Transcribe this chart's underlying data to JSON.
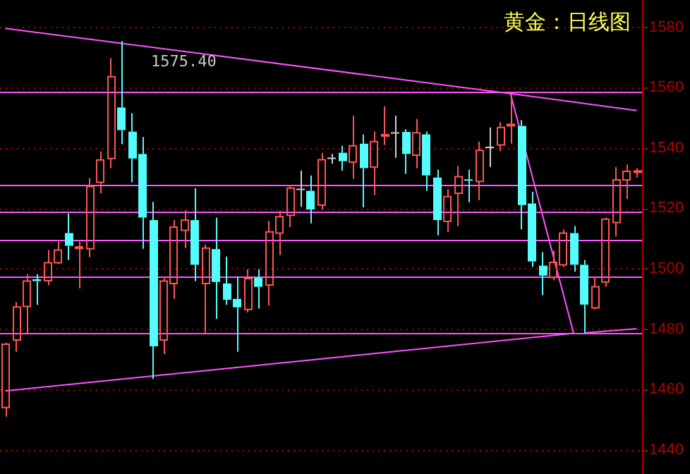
{
  "chart_data": {
    "type": "candlestick",
    "title": "黄金：日线图",
    "categories": [
      null,
      null,
      null,
      null,
      null,
      null,
      null,
      null,
      null,
      null,
      null,
      null,
      null,
      null,
      null,
      null,
      null,
      null,
      null,
      null,
      null,
      null,
      null,
      null,
      null,
      null,
      null,
      null,
      null,
      null,
      null,
      null,
      null,
      null,
      null,
      null,
      null,
      null,
      null,
      null,
      null,
      null,
      null,
      null,
      null,
      null,
      null,
      null,
      null,
      null,
      null,
      null,
      null,
      null,
      null,
      null,
      null,
      null,
      null,
      null,
      null
    ],
    "ohlc": [
      [
        1454,
        1475.5,
        1451,
        1475
      ],
      [
        1476.4,
        1488.9,
        1472.5,
        1487.3
      ],
      [
        1487.5,
        1498.2,
        1478.6,
        1495.9
      ],
      [
        1496.5,
        1498.2,
        1488,
        1495.9
      ],
      [
        1496,
        1506.2,
        1494.5,
        1502
      ],
      [
        1502,
        1509,
        1501.5,
        1506.2
      ],
      [
        1511.8,
        1518.3,
        1502.9,
        1507.6
      ],
      [
        1506.8,
        1509,
        1493.5,
        1507.2
      ],
      [
        1506.6,
        1530,
        1503.8,
        1527.2
      ],
      [
        1528.6,
        1538.9,
        1524.9,
        1536
      ],
      [
        1536.5,
        1569.7,
        1533.3,
        1563.6
      ],
      [
        1553.4,
        1575.4,
        1541.2,
        1545.9
      ],
      [
        1545.4,
        1551.5,
        1528.6,
        1536.5
      ],
      [
        1538,
        1543.6,
        1506.6,
        1516.9
      ],
      [
        1516.1,
        1522.1,
        1463.5,
        1474.3
      ],
      [
        1476.4,
        1497.4,
        1471.7,
        1495.9
      ],
      [
        1495.1,
        1516.1,
        1490,
        1513.8
      ],
      [
        1512.7,
        1519.3,
        1506.8,
        1516.1
      ],
      [
        1516.1,
        1526.6,
        1495.9,
        1501.3
      ],
      [
        1495.1,
        1508,
        1478.8,
        1506.8
      ],
      [
        1506.5,
        1516.9,
        1483.4,
        1495.6
      ],
      [
        1495.1,
        1504,
        1488.1,
        1489.7
      ],
      [
        1490,
        1497.4,
        1472.5,
        1487.2
      ],
      [
        1486.5,
        1499.8,
        1485.5,
        1496.7
      ],
      [
        1497,
        1499.8,
        1486.8,
        1494
      ],
      [
        1494.6,
        1515.8,
        1487.8,
        1512.2
      ],
      [
        1511.8,
        1519.2,
        1504.5,
        1517.2
      ],
      [
        1517.7,
        1527.8,
        1513.8,
        1526.7
      ],
      [
        1526.5,
        1532.5,
        1520.5,
        1526.2
      ],
      [
        1525.8,
        1530.9,
        1515,
        1519.6
      ],
      [
        1521.1,
        1538.3,
        1519.6,
        1536.1
      ],
      [
        1536.8,
        1538,
        1534.8,
        1536.6
      ],
      [
        1538.4,
        1540.7,
        1532.5,
        1535.6
      ],
      [
        1535.3,
        1550.7,
        1529.8,
        1540.7
      ],
      [
        1541.4,
        1544.5,
        1520.3,
        1533.3
      ],
      [
        1533.7,
        1545.4,
        1524.4,
        1542.1
      ],
      [
        1544,
        1553.8,
        1541,
        1544.4
      ],
      [
        1545.2,
        1550.7,
        1536.7,
        1544.8
      ],
      [
        1545.3,
        1546.2,
        1531.4,
        1538
      ],
      [
        1537.6,
        1549.6,
        1533.3,
        1545
      ],
      [
        1544.5,
        1545.4,
        1525.8,
        1530.9
      ],
      [
        1530.2,
        1532.8,
        1511,
        1516.1
      ],
      [
        1515.7,
        1526.3,
        1512.2,
        1523.9
      ],
      [
        1525,
        1534,
        1514.1,
        1530.5
      ],
      [
        1529.6,
        1532.8,
        1522,
        1529.2
      ],
      [
        1528.9,
        1542.1,
        1522.7,
        1539.2
      ],
      [
        1540.4,
        1546.8,
        1533.7,
        1540.2
      ],
      [
        1541,
        1548.5,
        1539,
        1546.8
      ],
      [
        1547.4,
        1557.4,
        1541.4,
        1547.8
      ],
      [
        1547.3,
        1549.2,
        1513,
        1521.1
      ],
      [
        1521.6,
        1525.5,
        1500.6,
        1502.4
      ],
      [
        1501,
        1505.5,
        1491.2,
        1497.7
      ],
      [
        1497.1,
        1506,
        1496.2,
        1502.1
      ],
      [
        1501.3,
        1513,
        1500.6,
        1511.8
      ],
      [
        1511.8,
        1514.1,
        1499,
        1501.3
      ],
      [
        1501.3,
        1502.9,
        1478.7,
        1488.1
      ],
      [
        1487,
        1497.1,
        1486.5,
        1494
      ],
      [
        1495.6,
        1516.9,
        1494,
        1516.4
      ],
      [
        1515.3,
        1533.7,
        1510.7,
        1529.4
      ],
      [
        1529.4,
        1534.5,
        1523.1,
        1532.2
      ],
      [
        1532,
        1533.3,
        1530.2,
        1532.4
      ]
    ],
    "colors": [
      "#ff5454",
      "#ff5454",
      "#ff5454",
      "#54fcfc",
      "#ff5454",
      "#ff5454",
      "#54fcfc",
      "#ff5454",
      "#ff5454",
      "#ff5454",
      "#ff5454",
      "#54fcfc",
      "#54fcfc",
      "#54fcfc",
      "#54fcfc",
      "#ff5454",
      "#ff5454",
      "#ff5454",
      "#54fcfc",
      "#ff5454",
      "#54fcfc",
      "#54fcfc",
      "#54fcfc",
      "#ff5454",
      "#54fcfc",
      "#ff5454",
      "#ff5454",
      "#ff5454",
      "#d0d0d0",
      "#54fcfc",
      "#ff5454",
      "#d0d0d0",
      "#54fcfc",
      "#ff5454",
      "#54fcfc",
      "#ff5454",
      "#ff5454",
      "#d0d0d0",
      "#54fcfc",
      "#ff5454",
      "#54fcfc",
      "#54fcfc",
      "#ff5454",
      "#ff5454",
      "#54fcfc",
      "#ff5454",
      "#d0d0d0",
      "#ff5454",
      "#ff5454",
      "#54fcfc",
      "#54fcfc",
      "#54fcfc",
      "#ff5454",
      "#ff5454",
      "#54fcfc",
      "#54fcfc",
      "#ff5454",
      "#ff5454",
      "#ff5454",
      "#ff5454",
      "#ff5454"
    ],
    "series": [
      {
        "type": "line",
        "color": "#ff54ff",
        "values": [
          1579.6,
          null,
          null,
          null,
          null,
          null,
          null,
          null,
          null,
          null,
          null,
          null,
          null,
          null,
          null,
          null,
          null,
          null,
          null,
          null,
          null,
          null,
          null,
          null,
          null,
          null,
          null,
          null,
          null,
          null,
          null,
          null,
          null,
          null,
          null,
          null,
          null,
          null,
          null,
          null,
          null,
          null,
          null,
          null,
          null,
          null,
          null,
          null,
          1558,
          null,
          null,
          null,
          null,
          null,
          null,
          null,
          null,
          null,
          null,
          null,
          1552.4
        ]
      },
      {
        "type": "line",
        "color": "#ff54ff",
        "values": [
          1459.5,
          null,
          null,
          null,
          null,
          null,
          null,
          null,
          null,
          null,
          null,
          null,
          null,
          null,
          null,
          null,
          null,
          null,
          null,
          null,
          null,
          null,
          null,
          null,
          null,
          null,
          null,
          null,
          null,
          null,
          null,
          null,
          null,
          null,
          null,
          null,
          null,
          null,
          null,
          null,
          null,
          null,
          null,
          null,
          null,
          null,
          null,
          null,
          null,
          null,
          null,
          null,
          null,
          null,
          1478.6,
          null,
          null,
          null,
          null,
          null,
          null
        ]
      },
      {
        "type": "line",
        "color": "#ff54ff",
        "values": [
          null,
          null,
          null,
          null,
          null,
          null,
          null,
          null,
          null,
          null,
          null,
          null,
          null,
          null,
          null,
          null,
          null,
          null,
          null,
          null,
          null,
          null,
          null,
          null,
          null,
          null,
          null,
          null,
          null,
          null,
          null,
          null,
          null,
          null,
          null,
          null,
          null,
          null,
          null,
          null,
          null,
          null,
          null,
          null,
          null,
          null,
          null,
          null,
          1558,
          null,
          null,
          null,
          null,
          null,
          1478.6,
          null,
          null,
          null,
          null,
          null,
          null
        ]
      },
      {
        "type": "line",
        "color": "#ff54ff",
        "values": [
          null,
          null,
          null,
          null,
          null,
          null,
          null,
          null,
          null,
          null,
          null,
          null,
          null,
          null,
          null,
          null,
          null,
          null,
          null,
          null,
          null,
          null,
          null,
          null,
          null,
          null,
          null,
          null,
          null,
          null,
          null,
          null,
          null,
          null,
          null,
          null,
          null,
          null,
          null,
          null,
          null,
          null,
          null,
          null,
          null,
          null,
          null,
          null,
          null,
          null,
          null,
          null,
          null,
          null,
          null,
          1478.7,
          null,
          null,
          null,
          null,
          1480.1
        ]
      }
    ],
    "ref_lines": [
      {
        "axis": "y",
        "value": 1558.5,
        "color": "#ff54ff"
      },
      {
        "axis": "y",
        "value": 1528,
        "color": "#ff54ff"
      },
      {
        "axis": "y",
        "value": 1519,
        "color": "#ff54ff"
      },
      {
        "axis": "y",
        "value": 1509.5,
        "color": "#ff54ff"
      },
      {
        "axis": "y",
        "value": 1497.5,
        "color": "#ff54ff"
      },
      {
        "axis": "y",
        "value": 1478.5,
        "color": "#ff54ff"
      }
    ],
    "annotations": [
      "1575.40"
    ],
    "ylim": [
      1432,
      1589
    ],
    "yticks": [
      1440,
      1460,
      1480,
      1500,
      1520,
      1540,
      1560,
      1580
    ],
    "grid": "y",
    "tick_labels": "y"
  }
}
